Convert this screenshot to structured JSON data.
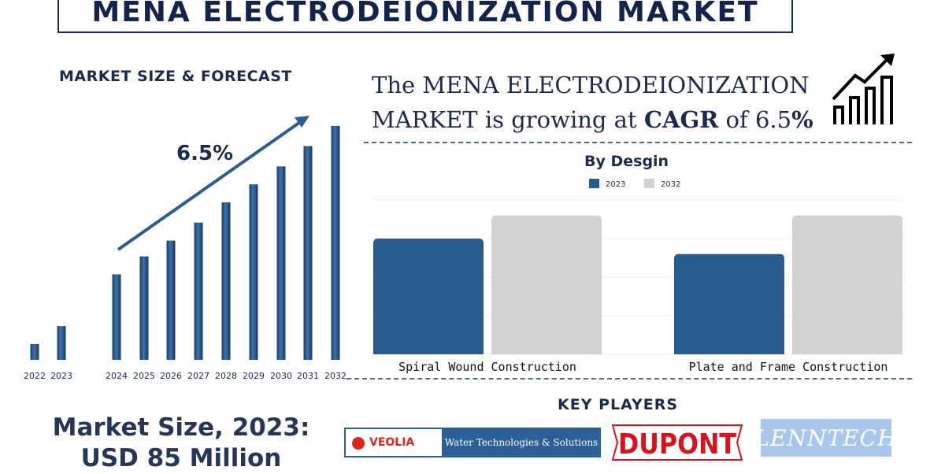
{
  "title": "MENA ELECTRODEIONIZATION MARKET",
  "forecast": {
    "subtitle": "MARKET SIZE & FORECAST",
    "growth_label": "6.5%"
  },
  "market_size": {
    "line1": "Market Size, 2023:",
    "line2": "USD 85 Million"
  },
  "headline": {
    "line1": "The MENA ELECTRODEIONIZATION",
    "line2_prefix": "MARKET is growing at",
    "line2_bold": "CAGR",
    "line2_mid": "of 6.5",
    "line2_end": "%"
  },
  "design": {
    "title": "By Desgin"
  },
  "key_players": {
    "title": "KEY PLAYERS",
    "logos": {
      "veolia": "VEOLIA",
      "veolia_sub": "Water Technologies & Solutions",
      "dupont": "DUPONT",
      "lenntech": "LENNTECH"
    }
  },
  "colors": {
    "navy": "#1c2a4e",
    "bar_dark": "#2a5b8e",
    "bar_light": "#d2d2d2",
    "veolia_red": "#e1241b",
    "dupont_red": "#d7141e",
    "lenntech_blue": "#a8c7ea"
  },
  "icons": {
    "growth": "growth-chart-icon",
    "trend_arrow": "trend-arrow-icon"
  },
  "chart_data": [
    {
      "type": "bar",
      "title": "MARKET SIZE & FORECAST",
      "categories": [
        "2022",
        "2023",
        "2024",
        "2025",
        "2026",
        "2027",
        "2028",
        "2029",
        "2030",
        "2031",
        "2032"
      ],
      "values": [
        7,
        15,
        38,
        46,
        53,
        61,
        70,
        78,
        86,
        95,
        104
      ],
      "annotation": "6.5%",
      "value_axis_shown": false,
      "grid": false
    },
    {
      "type": "bar",
      "title": "By Desgin",
      "categories": [
        "Spiral Wound Construction",
        "Plate and Frame Construction"
      ],
      "series": [
        {
          "name": "2023",
          "values": [
            60,
            52
          ]
        },
        {
          "name": "2032",
          "values": [
            72,
            72
          ]
        }
      ],
      "ylim": [
        0,
        80
      ],
      "legend": "top-center",
      "grid": true
    }
  ]
}
